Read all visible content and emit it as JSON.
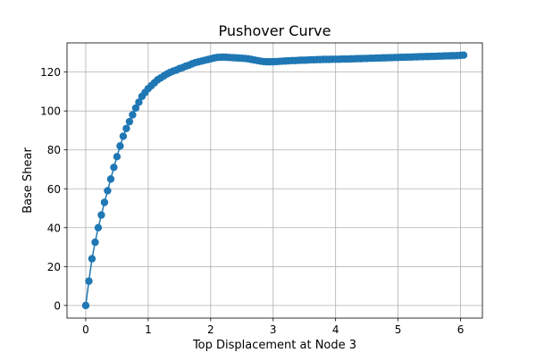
{
  "chart_data": {
    "type": "line",
    "title": "Pushover Curve",
    "xlabel": "Top Displacement at Node 3",
    "ylabel": "Base Shear",
    "xlim": [
      -0.3,
      6.35
    ],
    "ylim": [
      -6.5,
      135
    ],
    "xticks": [
      0,
      1,
      2,
      3,
      4,
      5,
      6
    ],
    "yticks": [
      0,
      20,
      40,
      60,
      80,
      100,
      120
    ],
    "grid": true,
    "color": "#1f77b4",
    "marker": "circle",
    "series": [
      {
        "x": [
          0,
          0.05,
          0.1,
          0.15,
          0.2,
          0.25,
          0.3,
          0.35,
          0.4,
          0.45,
          0.5,
          0.55,
          0.6,
          0.65,
          0.7,
          0.75,
          0.8,
          0.85,
          0.9,
          0.95,
          1.0,
          1.05,
          1.1,
          1.15,
          1.2,
          1.25,
          1.3,
          1.35,
          1.4,
          1.45,
          1.5,
          1.55,
          1.6,
          1.65,
          1.7,
          1.75,
          1.8,
          1.85,
          1.9,
          1.95,
          2.0,
          2.05,
          2.1,
          2.15,
          2.2,
          2.25,
          2.3,
          2.35,
          2.4,
          2.45,
          2.5,
          2.55,
          2.6,
          2.65,
          2.7,
          2.75,
          2.8,
          2.85,
          2.9,
          2.95,
          3.0,
          3.05,
          3.1,
          3.15,
          3.2,
          3.25,
          3.3,
          3.35,
          3.4,
          3.45,
          3.5,
          3.55,
          3.6,
          3.65,
          3.7,
          3.75,
          3.8,
          3.85,
          3.9,
          3.95,
          4.0,
          4.05,
          4.1,
          4.15,
          4.2,
          4.25,
          4.3,
          4.35,
          4.4,
          4.45,
          4.5,
          4.55,
          4.6,
          4.65,
          4.7,
          4.75,
          4.8,
          4.85,
          4.9,
          4.95,
          5.0,
          5.05,
          5.1,
          5.15,
          5.2,
          5.25,
          5.3,
          5.35,
          5.4,
          5.45,
          5.5,
          5.55,
          5.6,
          5.65,
          5.7,
          5.75,
          5.8,
          5.85,
          5.9,
          5.95,
          6.0,
          6.05
        ],
        "y": [
          0,
          12.5,
          24,
          32.5,
          40,
          46.5,
          53,
          59,
          65,
          71,
          76.5,
          82,
          87,
          91,
          94.5,
          98,
          101.5,
          104.5,
          107.5,
          109.5,
          111.5,
          113,
          114.5,
          116,
          117,
          118,
          119,
          119.8,
          120.5,
          121,
          121.8,
          122.3,
          123,
          123.5,
          124.2,
          124.8,
          125.2,
          125.6,
          126,
          126.4,
          126.8,
          127.2,
          127.5,
          127.6,
          127.7,
          127.6,
          127.5,
          127.4,
          127.3,
          127.2,
          127.1,
          127,
          126.8,
          126.5,
          126.2,
          125.9,
          125.6,
          125.4,
          125.3,
          125.3,
          125.3,
          125.4,
          125.5,
          125.6,
          125.7,
          125.8,
          125.9,
          125.9,
          126,
          126.1,
          126.1,
          126.2,
          126.3,
          126.3,
          126.4,
          126.4,
          126.5,
          126.5,
          126.5,
          126.6,
          126.6,
          126.6,
          126.7,
          126.7,
          126.7,
          126.8,
          126.8,
          126.9,
          126.9,
          127,
          127,
          127.1,
          127.1,
          127.2,
          127.2,
          127.3,
          127.3,
          127.4,
          127.4,
          127.5,
          127.5,
          127.6,
          127.6,
          127.7,
          127.7,
          127.8,
          127.8,
          127.9,
          127.9,
          128,
          128,
          128.1,
          128.1,
          128.2,
          128.2,
          128.3,
          128.3,
          128.4,
          128.4,
          128.5,
          128.6,
          128.7
        ]
      }
    ]
  }
}
